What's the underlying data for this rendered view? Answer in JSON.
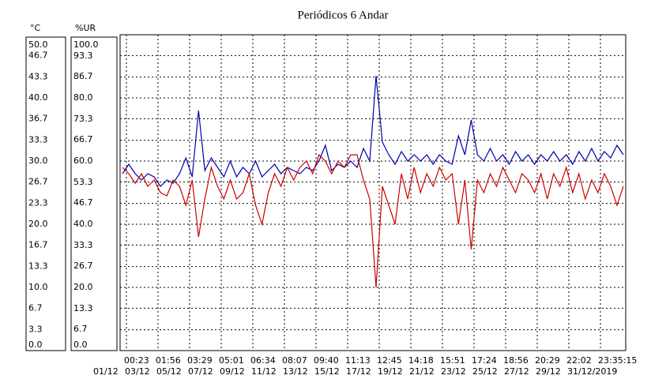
{
  "chart_data": {
    "type": "line",
    "title": "Periódicos 6 Andar",
    "ylabel": "°C",
    "y2label": "%UR",
    "ylim": [
      0,
      50
    ],
    "yticks": [
      {
        "value": 0,
        "label": "0.0"
      },
      {
        "value": 3.3,
        "label": "3.3"
      },
      {
        "value": 6.7,
        "label": "6.7"
      },
      {
        "value": 10,
        "label": "10.0"
      },
      {
        "value": 13.3,
        "label": "13.3"
      },
      {
        "value": 16.7,
        "label": "16.7"
      },
      {
        "value": 20,
        "label": "20.0"
      },
      {
        "value": 23.3,
        "label": "23.3"
      },
      {
        "value": 26.7,
        "label": "26.7"
      },
      {
        "value": 30,
        "label": "30.0"
      },
      {
        "value": 33.3,
        "label": "33.3"
      },
      {
        "value": 36.7,
        "label": "36.7"
      },
      {
        "value": 40,
        "label": "40.0"
      },
      {
        "value": 43.3,
        "label": "43.3"
      },
      {
        "value": 46.7,
        "label": "46.7"
      },
      {
        "value": 50,
        "label": "50.0"
      }
    ],
    "y2lim": [
      0,
      100
    ],
    "y2ticks": [
      {
        "value": 0,
        "label": "0.0"
      },
      {
        "value": 6.7,
        "label": "6.7"
      },
      {
        "value": 13.3,
        "label": "13.3"
      },
      {
        "value": 20,
        "label": "20.0"
      },
      {
        "value": 26.7,
        "label": "26.7"
      },
      {
        "value": 33.3,
        "label": "33.3"
      },
      {
        "value": 40,
        "label": "40.0"
      },
      {
        "value": 46.7,
        "label": "46.7"
      },
      {
        "value": 53.3,
        "label": "53.3"
      },
      {
        "value": 60,
        "label": "60.0"
      },
      {
        "value": 66.7,
        "label": "66.7"
      },
      {
        "value": 73.3,
        "label": "73.3"
      },
      {
        "value": 80,
        "label": "80.0"
      },
      {
        "value": 86.7,
        "label": "86.7"
      },
      {
        "value": 93.3,
        "label": "93.3"
      },
      {
        "value": 100,
        "label": "100.0"
      }
    ],
    "x_time_labels": [
      "00:23",
      "01:56",
      "03:29",
      "05:01",
      "06:34",
      "08:07",
      "09:40",
      "11:13",
      "12:45",
      "14:18",
      "15:51",
      "17:24",
      "18:56",
      "20:29",
      "22:02",
      "23:35:15"
    ],
    "x_date_labels": [
      "01/12",
      "03/12",
      "05/12",
      "07/12",
      "09/12",
      "11/12",
      "13/12",
      "15/12",
      "17/12",
      "19/12",
      "21/12",
      "23/12",
      "25/12",
      "27/12",
      "29/12",
      "31/12/2019"
    ],
    "grid": true,
    "series": [
      {
        "color": "#0000aa",
        "axis": "y2",
        "values": [
          56,
          59,
          56,
          54,
          56,
          55,
          52,
          54,
          53,
          56,
          61,
          55,
          76,
          57,
          61,
          58,
          55,
          60,
          55,
          58,
          56,
          60,
          55,
          57,
          59,
          56,
          58,
          57,
          56,
          58,
          57,
          60,
          65,
          57,
          59,
          58,
          60,
          58,
          64,
          60,
          87,
          66,
          62,
          59,
          63,
          60,
          62,
          60,
          62,
          59,
          62,
          60,
          59,
          68,
          62,
          73,
          62,
          60,
          64,
          60,
          62,
          59,
          63,
          60,
          62,
          59,
          62,
          60,
          63,
          60,
          62,
          59,
          63,
          60,
          64,
          60,
          63,
          61,
          65,
          62
        ]
      },
      {
        "color": "#cc0000",
        "axis": "y",
        "values": [
          29,
          28,
          26.5,
          28,
          26,
          27,
          25,
          24.5,
          27,
          26,
          23,
          27,
          18,
          24,
          29,
          26,
          24,
          27,
          24,
          25,
          28,
          23,
          20,
          25,
          28,
          26,
          29,
          27,
          29,
          30,
          28,
          31,
          30,
          28,
          30,
          29,
          31,
          31,
          27,
          24,
          10,
          26,
          23,
          20,
          28,
          24,
          29,
          25,
          28,
          26,
          29,
          27,
          28,
          20,
          27,
          16,
          27,
          25,
          28,
          26,
          29,
          27,
          25,
          28,
          27,
          25,
          28,
          24,
          28,
          26,
          29,
          25,
          28,
          24,
          27,
          25,
          28,
          26,
          23,
          26
        ]
      }
    ]
  }
}
